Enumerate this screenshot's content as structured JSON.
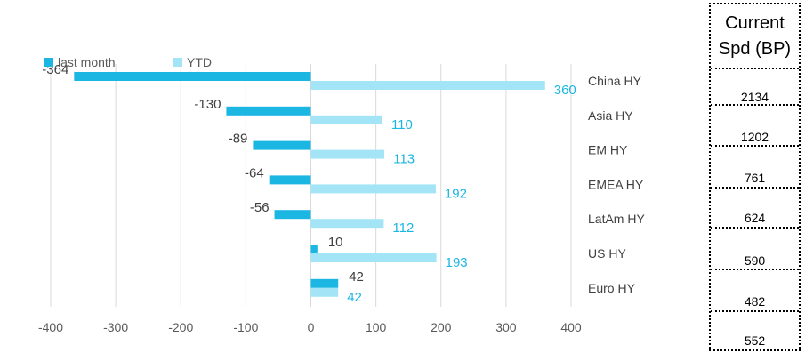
{
  "chart_data": {
    "type": "bar",
    "orientation": "horizontal",
    "categories": [
      "China HY",
      "Asia HY",
      "EM HY",
      "EMEA HY",
      "LatAm HY",
      "US HY",
      "Euro HY"
    ],
    "series": [
      {
        "name": "last month",
        "values": [
          -364,
          -130,
          -89,
          -64,
          -56,
          10,
          42
        ],
        "color": "#1cb6e3"
      },
      {
        "name": "YTD",
        "values": [
          360,
          110,
          113,
          192,
          112,
          193,
          42
        ],
        "color": "#a3e4f6"
      }
    ],
    "data_labels": {
      "last month": [
        "-364",
        "-130",
        "-89",
        "-64",
        "-56",
        "10",
        "42"
      ],
      "YTD": [
        "360",
        "110",
        "113",
        "192",
        "112",
        "193",
        "42"
      ]
    },
    "xlim": [
      -400,
      400
    ],
    "xticks": [
      -400,
      -300,
      -200,
      -100,
      0,
      100,
      200,
      300,
      400
    ],
    "grid": "vertical",
    "legend_position": "top-left",
    "title": "",
    "xlabel": "",
    "ylabel": ""
  },
  "legend": {
    "items": [
      {
        "label": "last month",
        "color": "#1cb6e3"
      },
      {
        "label": "YTD",
        "color": "#a3e4f6"
      }
    ]
  },
  "side_table": {
    "header": [
      "Current",
      "Spd (BP)"
    ],
    "values": [
      "2134",
      "1202",
      "761",
      "624",
      "590",
      "482",
      "552"
    ]
  }
}
